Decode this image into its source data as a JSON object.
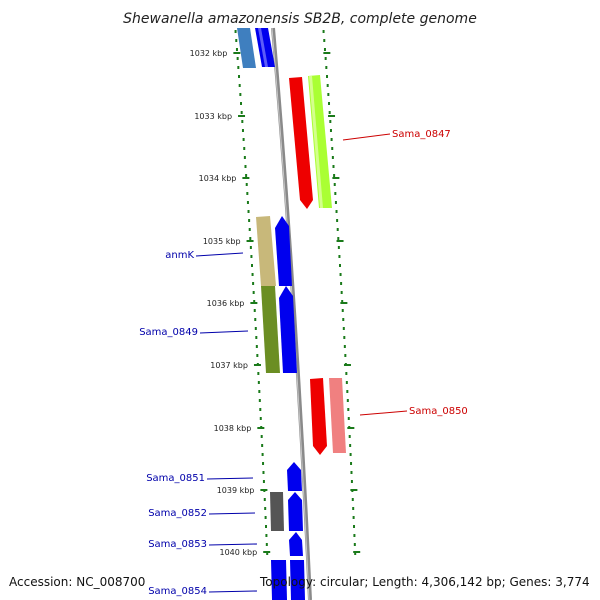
{
  "title": "Shewanella amazonensis SB2B, complete genome",
  "footer": {
    "accession": "Accession: NC_008700",
    "summary": "Topology: circular; Length: 4,306,142 bp; Genes: 3,774"
  },
  "ticks": [
    "1032 kbp",
    "1033 kbp",
    "1034 kbp",
    "1035 kbp",
    "1036 kbp",
    "1037 kbp",
    "1038 kbp",
    "1039 kbp",
    "1040 kbp"
  ],
  "labels": [
    {
      "text": "Sama_0847",
      "strand": "minus",
      "color": "#cc0000"
    },
    {
      "text": "anmK",
      "strand": "plus",
      "color": "#0000aa"
    },
    {
      "text": "Sama_0849",
      "strand": "plus",
      "color": "#0000aa"
    },
    {
      "text": "Sama_0850",
      "strand": "minus",
      "color": "#cc0000"
    },
    {
      "text": "Sama_0851",
      "strand": "plus",
      "color": "#0000aa"
    },
    {
      "text": "Sama_0852",
      "strand": "plus",
      "color": "#0000aa"
    },
    {
      "text": "Sama_0853",
      "strand": "plus",
      "color": "#0000aa"
    },
    {
      "text": "Sama_0854",
      "strand": "plus",
      "color": "#0000aa"
    }
  ],
  "colors": {
    "backbone": "#888888",
    "tick": "#1a7a1a",
    "plus_cds": "#0000ee",
    "minus_cds": "#ee0000"
  }
}
